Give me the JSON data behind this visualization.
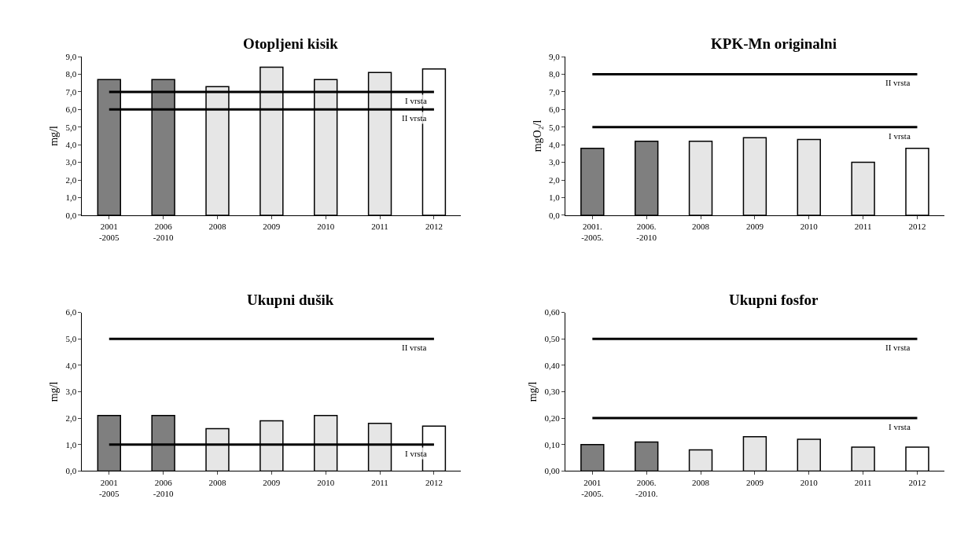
{
  "chart_data": [
    {
      "type": "bar",
      "title": "Otopljeni kisik",
      "ylabel": "mg/l",
      "categories": [
        "2001\n-2005",
        "2006\n-2010",
        "2008",
        "2009",
        "2010",
        "2011",
        "2012"
      ],
      "values": [
        7.7,
        7.7,
        7.3,
        8.4,
        7.7,
        8.1,
        8.3
      ],
      "colors": [
        "#7f7f7f",
        "#7f7f7f",
        "#e6e6e6",
        "#e6e6e6",
        "#e6e6e6",
        "#e6e6e6",
        "#ffffff"
      ],
      "ylim": [
        0,
        9
      ],
      "yticks": [
        {
          "value": 0,
          "label": "0,0"
        },
        {
          "value": 1,
          "label": "1,0"
        },
        {
          "value": 2,
          "label": "2,0"
        },
        {
          "value": 3,
          "label": "3,0"
        },
        {
          "value": 4,
          "label": "4,0"
        },
        {
          "value": 5,
          "label": "5,0"
        },
        {
          "value": 6,
          "label": "6,0"
        },
        {
          "value": 7,
          "label": "7,0"
        },
        {
          "value": 8,
          "label": "8,0"
        },
        {
          "value": 9,
          "label": "9,0"
        }
      ],
      "ref_lines": [
        {
          "axis": "y",
          "value": 7,
          "label": "I vrsta",
          "color": "#000000"
        },
        {
          "axis": "y",
          "value": 6,
          "label": "II vrsta",
          "color": "#000000"
        }
      ]
    },
    {
      "type": "bar",
      "title": "KPK-Mn originalni",
      "ylabel": "mgO₂/l",
      "categories": [
        "2001.\n-2005.",
        "2006.\n-2010",
        "2008",
        "2009",
        "2010",
        "2011",
        "2012"
      ],
      "values": [
        3.8,
        4.2,
        4.2,
        4.4,
        4.3,
        3.0,
        3.8
      ],
      "colors": [
        "#7f7f7f",
        "#7f7f7f",
        "#e6e6e6",
        "#e6e6e6",
        "#e6e6e6",
        "#e6e6e6",
        "#ffffff"
      ],
      "ylim": [
        0,
        9
      ],
      "yticks": [
        {
          "value": 0,
          "label": "0,0"
        },
        {
          "value": 1,
          "label": "1,0"
        },
        {
          "value": 2,
          "label": "2,0"
        },
        {
          "value": 3,
          "label": "3,0"
        },
        {
          "value": 4,
          "label": "4,0"
        },
        {
          "value": 5,
          "label": "5,0"
        },
        {
          "value": 6,
          "label": "6,0"
        },
        {
          "value": 7,
          "label": "7,0"
        },
        {
          "value": 8,
          "label": "8,0"
        },
        {
          "value": 9,
          "label": "9,0"
        }
      ],
      "ref_lines": [
        {
          "axis": "y",
          "value": 8,
          "label": "II vrsta",
          "color": "#000000"
        },
        {
          "axis": "y",
          "value": 5,
          "label": "I vrsta",
          "color": "#000000"
        }
      ]
    },
    {
      "type": "bar",
      "title": "Ukupni dušik",
      "ylabel": "mg/l",
      "categories": [
        "2001\n-2005",
        "2006\n-2010",
        "2008",
        "2009",
        "2010",
        "2011",
        "2012"
      ],
      "values": [
        2.1,
        2.1,
        1.6,
        1.9,
        2.1,
        1.8,
        1.7
      ],
      "colors": [
        "#7f7f7f",
        "#7f7f7f",
        "#e6e6e6",
        "#e6e6e6",
        "#e6e6e6",
        "#e6e6e6",
        "#ffffff"
      ],
      "ylim": [
        0,
        6
      ],
      "yticks": [
        {
          "value": 0,
          "label": "0,0"
        },
        {
          "value": 1,
          "label": "1,0"
        },
        {
          "value": 2,
          "label": "2,0"
        },
        {
          "value": 3,
          "label": "3,0"
        },
        {
          "value": 4,
          "label": "4,0"
        },
        {
          "value": 5,
          "label": "5,0"
        },
        {
          "value": 6,
          "label": "6,0"
        }
      ],
      "ref_lines": [
        {
          "axis": "y",
          "value": 5,
          "label": "II vrsta",
          "color": "#000000"
        },
        {
          "axis": "y",
          "value": 1,
          "label": "I vrsta",
          "color": "#000000"
        }
      ]
    },
    {
      "type": "bar",
      "title": "Ukupni fosfor",
      "ylabel": "mg/l",
      "categories": [
        "2001\n-2005.",
        "2006.\n-2010.",
        "2008",
        "2009",
        "2010",
        "2011",
        "2012"
      ],
      "values": [
        0.1,
        0.11,
        0.08,
        0.13,
        0.12,
        0.09,
        0.09
      ],
      "colors": [
        "#7f7f7f",
        "#7f7f7f",
        "#e6e6e6",
        "#e6e6e6",
        "#e6e6e6",
        "#e6e6e6",
        "#ffffff"
      ],
      "ylim": [
        0,
        0.6
      ],
      "yticks": [
        {
          "value": 0,
          "label": "0,00"
        },
        {
          "value": 0.1,
          "label": "0,10"
        },
        {
          "value": 0.2,
          "label": "0,20"
        },
        {
          "value": 0.3,
          "label": "0,30"
        },
        {
          "value": 0.4,
          "label": "0,40"
        },
        {
          "value": 0.5,
          "label": "0,50"
        },
        {
          "value": 0.6,
          "label": "0,60"
        }
      ],
      "ref_lines": [
        {
          "axis": "y",
          "value": 0.5,
          "label": "II vrsta",
          "color": "#000000"
        },
        {
          "axis": "y",
          "value": 0.2,
          "label": "I vrsta",
          "color": "#000000"
        }
      ]
    }
  ]
}
